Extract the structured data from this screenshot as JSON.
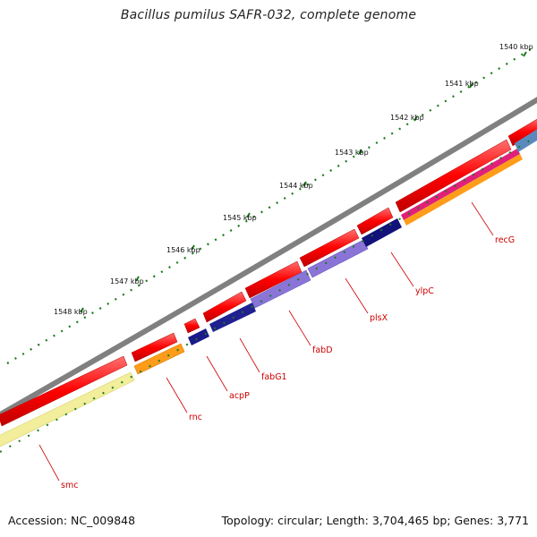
{
  "title": "Bacillus pumilus SAFR-032, complete genome",
  "footer": {
    "accession": "Accession: NC_009848",
    "summary": "Topology: circular; Length: 3,704,465 bp; Genes: 3,771"
  },
  "ticks": [
    {
      "label": "1540 kbp"
    },
    {
      "label": "1541 kbp"
    },
    {
      "label": "1542 kbp"
    },
    {
      "label": "1543 kbp"
    },
    {
      "label": "1544 kbp"
    },
    {
      "label": "1545 kbp"
    },
    {
      "label": "1546 kbp"
    },
    {
      "label": "1547 kbp"
    },
    {
      "label": "1548 kbp"
    }
  ],
  "genes": [
    {
      "name": "smc"
    },
    {
      "name": "rnc"
    },
    {
      "name": "acpP"
    },
    {
      "name": "fabG1"
    },
    {
      "name": "fabD"
    },
    {
      "name": "plsX"
    },
    {
      "name": "ylpC"
    },
    {
      "name": "recG"
    }
  ],
  "colors": {
    "backbone": "#808080",
    "cds": "#ff0000",
    "tick": "#1a7a1a",
    "label": "#cc0000"
  }
}
